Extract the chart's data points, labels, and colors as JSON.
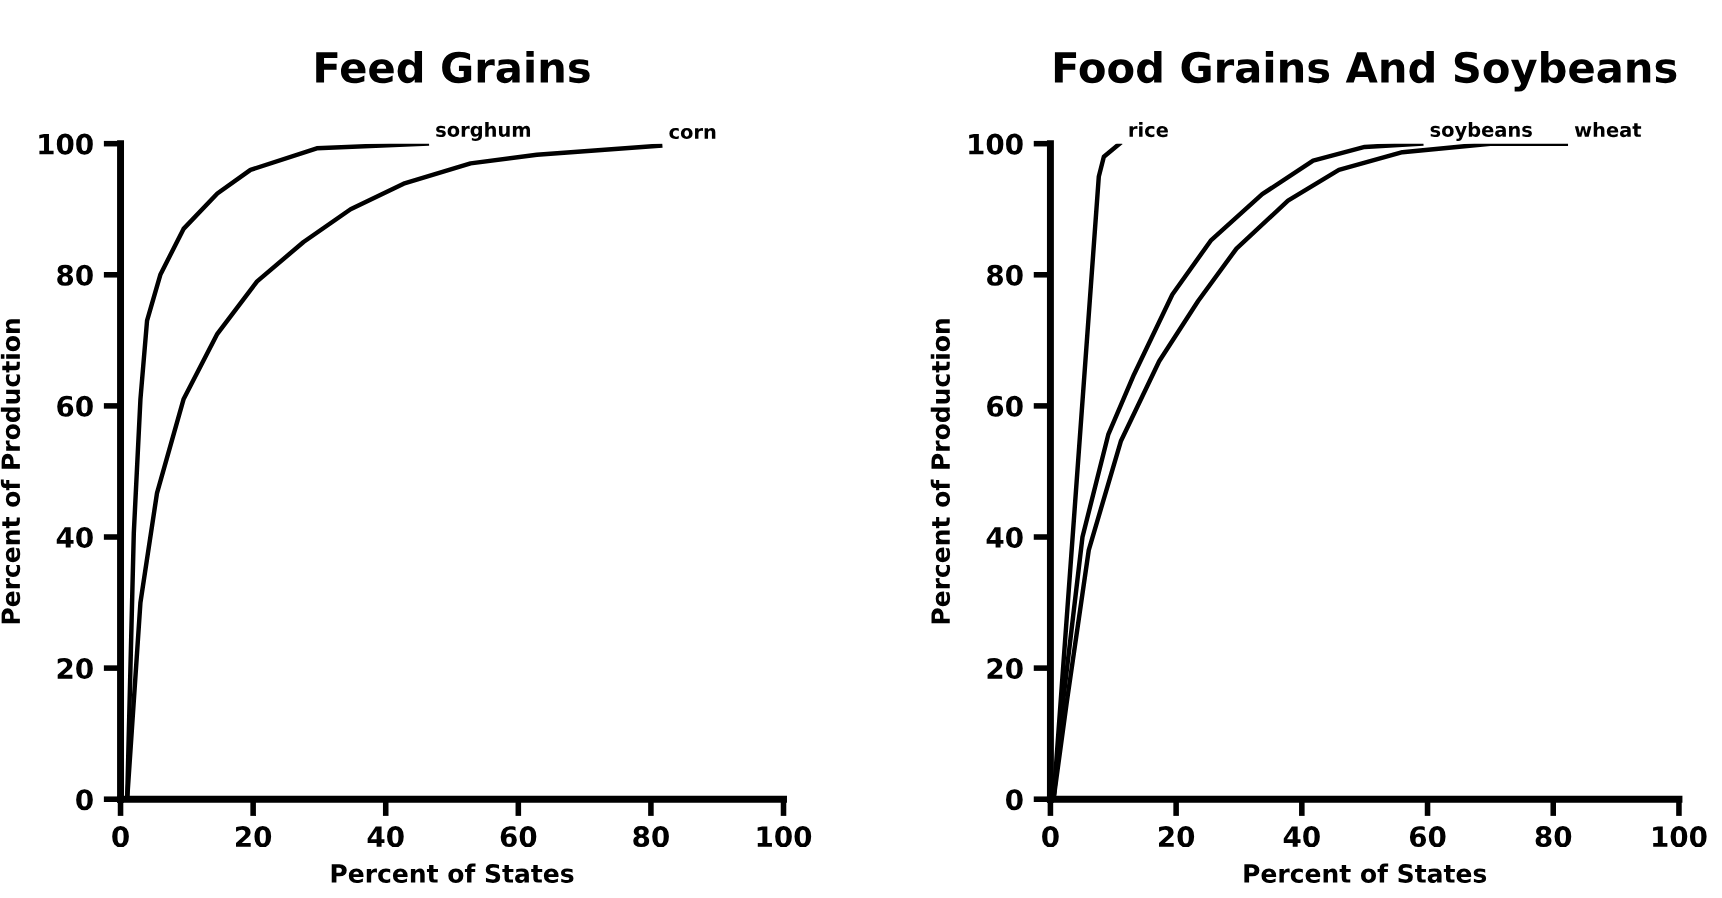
{
  "chart_data": [
    {
      "type": "line",
      "title": "Feed Grains",
      "xlabel": "Percent of States",
      "ylabel": "Percent of Production",
      "xlim": [
        0,
        100
      ],
      "ylim": [
        0,
        100
      ],
      "xticks": [
        0,
        20,
        40,
        60,
        80,
        100
      ],
      "yticks": [
        0,
        20,
        40,
        60,
        80,
        100
      ],
      "grid": false,
      "legend": false,
      "marker": "none",
      "line_style": "solid",
      "series": [
        {
          "name": "sorghum",
          "color": "#000000",
          "x": [
            1,
            2,
            3,
            4,
            6,
            9.5,
            14.6,
            19.6,
            29.6,
            46.2
          ],
          "values": [
            0,
            40.6,
            61,
            73,
            80,
            87,
            92.4,
            96,
            99.3,
            100
          ]
        },
        {
          "name": "corn",
          "color": "#000000",
          "x": [
            1,
            3,
            5.5,
            9.5,
            14.6,
            20.6,
            27.6,
            34.7,
            42.7,
            52.8,
            62.8,
            81.4
          ],
          "values": [
            0,
            30,
            46.7,
            61,
            71,
            79,
            85,
            90,
            93.9,
            97,
            98.3,
            99.7
          ]
        }
      ]
    },
    {
      "type": "line",
      "title": "Food Grains And Soybeans",
      "xlabel": "Percent of States",
      "ylabel": "Percent of Production",
      "xlim": [
        0,
        100
      ],
      "ylim": [
        0,
        100
      ],
      "xticks": [
        0,
        20,
        40,
        60,
        80,
        100
      ],
      "yticks": [
        0,
        20,
        40,
        60,
        80,
        100
      ],
      "grid": false,
      "legend": false,
      "marker": "none",
      "line_style": "solid",
      "series": [
        {
          "name": "rice",
          "color": "#000000",
          "x": [
            0.5,
            7.7,
            8.5,
            11
          ],
          "values": [
            0,
            95,
            98,
            100
          ]
        },
        {
          "name": "soybeans",
          "color": "#000000",
          "x": [
            0.5,
            2,
            5.1,
            9.2,
            13.3,
            19.4,
            25.5,
            33.7,
            41.8,
            50,
            59
          ],
          "values": [
            0,
            14.8,
            40,
            55.6,
            64.8,
            77,
            85.2,
            92.3,
            97.4,
            99.5,
            100
          ]
        },
        {
          "name": "wheat",
          "color": "#000000",
          "x": [
            0.5,
            2.6,
            6.1,
            11.2,
            17.3,
            23.5,
            29.6,
            37.8,
            45.9,
            56,
            70,
            82
          ],
          "values": [
            0,
            14.8,
            38,
            54.6,
            66.8,
            76,
            84,
            91.3,
            96,
            98.7,
            100,
            100
          ]
        }
      ]
    }
  ]
}
